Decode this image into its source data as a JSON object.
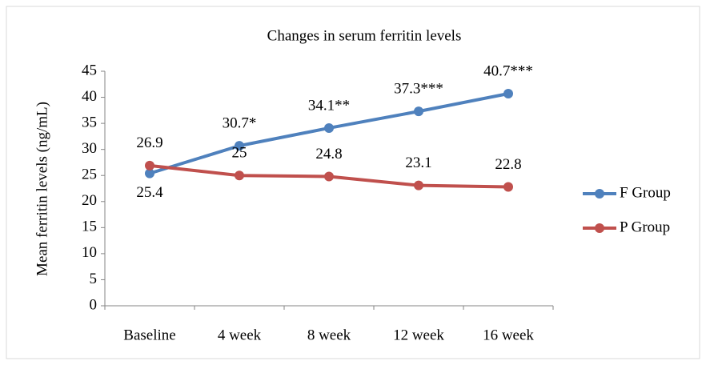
{
  "chart_data": {
    "type": "line",
    "title": "Changes in serum ferritin levels",
    "y_label": "Mean ferritin levels (ng/mL)",
    "categories": [
      "Baseline",
      "4 week",
      "8 week",
      "12 week",
      "16 week"
    ],
    "series": [
      {
        "name": "F Group",
        "color": "#4f81bd",
        "values": [
          25.4,
          30.7,
          34.1,
          37.3,
          40.7
        ],
        "value_labels": [
          "25.4",
          "30.7*",
          "34.1**",
          "37.3***",
          "40.7***"
        ]
      },
      {
        "name": "P Group",
        "color": "#c0504d",
        "values": [
          26.9,
          25,
          24.8,
          23.1,
          22.8
        ]
      }
    ],
    "ylim": [
      0,
      45
    ],
    "yticks": [
      0,
      5,
      10,
      15,
      20,
      25,
      30,
      35,
      40,
      45
    ],
    "grid": false,
    "legend": "right"
  }
}
